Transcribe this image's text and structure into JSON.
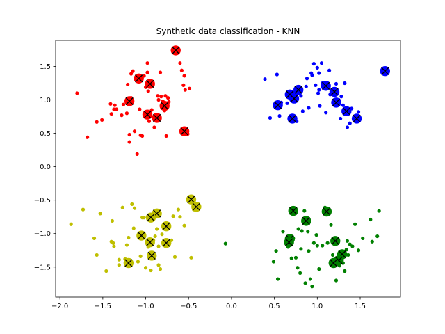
{
  "chart_data": {
    "type": "scatter",
    "title": "Synthetic data classification - KNN",
    "xlabel": "",
    "ylabel": "",
    "xlim": [
      -2.05,
      1.97
    ],
    "ylim": [
      -1.95,
      1.89
    ],
    "xticks": [
      -2.0,
      -1.5,
      -1.0,
      -0.5,
      0.0,
      0.5,
      1.0,
      1.5
    ],
    "xtick_labels": [
      "−2.0",
      "−1.5",
      "−1.0",
      "−0.5",
      "0.0",
      "0.5",
      "1.0",
      "1.5"
    ],
    "yticks": [
      -1.5,
      -1.0,
      -0.5,
      0.0,
      0.5,
      1.0,
      1.5
    ],
    "ytick_labels": [
      "−1.5",
      "−1.0",
      "−0.5",
      "0.0",
      "0.5",
      "1.0",
      "1.5"
    ],
    "grid": false,
    "series": [
      {
        "color": "#ff0000",
        "points": [
          [
            -1.8,
            1.1
          ],
          [
            -1.68,
            0.44
          ],
          [
            -1.57,
            0.67
          ],
          [
            -1.51,
            0.7
          ],
          [
            -1.41,
            0.94
          ],
          [
            -1.4,
            0.79
          ],
          [
            -1.37,
            0.86
          ],
          [
            -1.36,
            0.92
          ],
          [
            -1.34,
            0.86
          ],
          [
            -1.28,
            0.77
          ],
          [
            -1.26,
            0.93
          ],
          [
            -1.22,
            0.8
          ],
          [
            -1.17,
            1.03
          ],
          [
            -1.21,
            1.23
          ],
          [
            -1.19,
            0.48
          ],
          [
            -1.19,
            0.37
          ],
          [
            -1.17,
            1.39
          ],
          [
            -1.15,
            1.43
          ],
          [
            -1.13,
            0.53
          ],
          [
            -1.1,
            0.19
          ],
          [
            -1.07,
            0.86
          ],
          [
            -1.06,
            0.47
          ],
          [
            -1.04,
            0.46
          ],
          [
            -1.02,
            1.36
          ],
          [
            -1.0,
            1.19
          ],
          [
            -0.98,
            1.41
          ],
          [
            -0.98,
            1.55
          ],
          [
            -0.97,
            1.13
          ],
          [
            -0.96,
            0.68
          ],
          [
            -0.93,
            0.85
          ],
          [
            -0.9,
            0.59
          ],
          [
            -0.88,
            0.71
          ],
          [
            -0.86,
            1.06
          ],
          [
            -0.85,
            1.0
          ],
          [
            -0.83,
            1.41
          ],
          [
            -0.82,
            1.05
          ],
          [
            -0.8,
            0.98
          ],
          [
            -0.78,
            0.84
          ],
          [
            -0.76,
            0.46
          ],
          [
            -0.77,
            1.06
          ],
          [
            -0.74,
            1.03
          ],
          [
            -0.73,
            0.97
          ],
          [
            -0.6,
            1.55
          ],
          [
            -0.58,
            1.44
          ],
          [
            -0.56,
            1.22
          ],
          [
            -0.55,
            1.36
          ],
          [
            -0.54,
            1.15
          ],
          [
            -0.51,
            0.49
          ],
          [
            -0.49,
            1.17
          ]
        ],
        "neighbors": [
          [
            -0.65,
            1.74
          ],
          [
            -1.08,
            1.32
          ],
          [
            -0.95,
            1.24
          ],
          [
            -1.19,
            0.98
          ],
          [
            -0.78,
            0.91
          ],
          [
            -0.98,
            0.78
          ],
          [
            -0.87,
            0.73
          ],
          [
            -0.55,
            0.53
          ]
        ]
      },
      {
        "color": "#0000ff",
        "points": [
          [
            0.39,
            1.31
          ],
          [
            0.45,
            0.73
          ],
          [
            0.53,
            1.38
          ],
          [
            0.56,
            0.76
          ],
          [
            0.58,
            0.96
          ],
          [
            0.65,
            0.95
          ],
          [
            0.68,
            1.05
          ],
          [
            0.7,
            0.72
          ],
          [
            0.72,
            0.99
          ],
          [
            0.76,
            0.68
          ],
          [
            0.81,
            1.06
          ],
          [
            0.83,
            0.83
          ],
          [
            0.87,
            1.2
          ],
          [
            0.88,
            1.32
          ],
          [
            0.9,
            0.88
          ],
          [
            0.93,
            1.4
          ],
          [
            0.94,
            1.37
          ],
          [
            0.96,
            1.54
          ],
          [
            0.98,
            1.22
          ],
          [
            1.0,
            1.48
          ],
          [
            1.01,
            1.1
          ],
          [
            1.02,
            1.15
          ],
          [
            1.02,
            1.4
          ],
          [
            1.03,
            0.91
          ],
          [
            1.05,
            1.55
          ],
          [
            1.06,
            1.25
          ],
          [
            1.1,
            0.81
          ],
          [
            1.14,
            1.44
          ],
          [
            1.15,
            1.08
          ],
          [
            1.18,
            1.11
          ],
          [
            1.19,
            0.97
          ],
          [
            1.22,
            1.24
          ],
          [
            1.25,
            1.0
          ],
          [
            1.27,
            0.72
          ],
          [
            1.28,
            1.05
          ],
          [
            1.3,
            0.92
          ],
          [
            1.32,
            1.25
          ],
          [
            1.35,
            0.59
          ],
          [
            1.38,
            0.65
          ],
          [
            1.4,
            0.87
          ],
          [
            1.43,
            0.73
          ],
          [
            1.48,
            0.82
          ]
        ],
        "neighbors": [
          [
            1.79,
            1.43
          ],
          [
            1.1,
            1.21
          ],
          [
            0.78,
            1.15
          ],
          [
            0.68,
            1.08
          ],
          [
            1.2,
            1.12
          ],
          [
            1.22,
            0.96
          ],
          [
            0.54,
            0.92
          ],
          [
            0.73,
            1.02
          ],
          [
            1.34,
            0.83
          ],
          [
            0.71,
            0.72
          ],
          [
            1.46,
            0.72
          ]
        ]
      },
      {
        "color": "#bfbf00",
        "points": [
          [
            -1.87,
            -0.86
          ],
          [
            -1.73,
            -0.64
          ],
          [
            -1.6,
            -1.07
          ],
          [
            -1.57,
            -1.32
          ],
          [
            -1.53,
            -0.7
          ],
          [
            -1.46,
            -1.56
          ],
          [
            -1.4,
            -1.12
          ],
          [
            -1.39,
            -0.81
          ],
          [
            -1.38,
            -1.14
          ],
          [
            -1.37,
            -1.19
          ],
          [
            -1.31,
            -1.47
          ],
          [
            -1.31,
            -1.39
          ],
          [
            -1.27,
            -0.61
          ],
          [
            -1.24,
            -1.38
          ],
          [
            -1.22,
            -1.17
          ],
          [
            -1.2,
            -1.06
          ],
          [
            -1.16,
            -0.56
          ],
          [
            -1.14,
            -0.92
          ],
          [
            -1.13,
            -0.62
          ],
          [
            -1.09,
            -1.42
          ],
          [
            -1.06,
            -1.34
          ],
          [
            -1.04,
            -0.76
          ],
          [
            -1.02,
            -0.76
          ],
          [
            -1.0,
            -1.51
          ],
          [
            -0.97,
            -1.2
          ],
          [
            -0.94,
            -1.55
          ],
          [
            -0.92,
            -1.32
          ],
          [
            -0.91,
            -1.1
          ],
          [
            -0.89,
            -1.04
          ],
          [
            -0.87,
            -0.93
          ],
          [
            -0.85,
            -1.19
          ],
          [
            -0.85,
            -1.47
          ],
          [
            -0.83,
            -1.53
          ],
          [
            -0.81,
            -1.01
          ],
          [
            -0.79,
            -0.92
          ],
          [
            -0.76,
            -0.85
          ],
          [
            -0.7,
            -1.1
          ],
          [
            -0.68,
            -0.74
          ],
          [
            -0.66,
            -1.35
          ],
          [
            -0.62,
            -0.64
          ],
          [
            -0.6,
            -0.75
          ],
          [
            -0.55,
            -0.88
          ],
          [
            -0.47,
            -1.36
          ],
          [
            -0.44,
            -0.64
          ]
        ],
        "neighbors": [
          [
            -0.47,
            -0.49
          ],
          [
            -0.41,
            -0.6
          ],
          [
            -0.87,
            -0.7
          ],
          [
            -0.94,
            -0.76
          ],
          [
            -0.76,
            -0.89
          ],
          [
            -1.05,
            -1.03
          ],
          [
            -0.95,
            -1.13
          ],
          [
            -0.76,
            -1.14
          ],
          [
            -0.93,
            -1.33
          ],
          [
            -1.2,
            -1.44
          ]
        ]
      },
      {
        "color": "#008000",
        "points": [
          [
            -0.07,
            -1.15
          ],
          [
            0.49,
            -1.42
          ],
          [
            0.52,
            -1.26
          ],
          [
            0.54,
            -1.68
          ],
          [
            0.6,
            -0.97
          ],
          [
            0.65,
            -1.13
          ],
          [
            0.66,
            -1.2
          ],
          [
            0.7,
            -1.37
          ],
          [
            0.72,
            -1.07
          ],
          [
            0.75,
            -1.36
          ],
          [
            0.77,
            -1.51
          ],
          [
            0.78,
            -0.93
          ],
          [
            0.8,
            -1.59
          ],
          [
            0.81,
            -1.23
          ],
          [
            0.82,
            -0.96
          ],
          [
            0.85,
            -0.66
          ],
          [
            0.86,
            -1.74
          ],
          [
            0.89,
            -0.97
          ],
          [
            0.9,
            -1.26
          ],
          [
            0.92,
            -1.68
          ],
          [
            0.94,
            -1.79
          ],
          [
            0.96,
            -1.14
          ],
          [
            0.99,
            -1.02
          ],
          [
            1.0,
            -1.18
          ],
          [
            1.02,
            -1.53
          ],
          [
            1.06,
            -1.18
          ],
          [
            1.09,
            -0.61
          ],
          [
            1.12,
            -1.14
          ],
          [
            1.16,
            -0.87
          ],
          [
            1.18,
            -1.32
          ],
          [
            1.22,
            -1.7
          ],
          [
            1.24,
            -1.36
          ],
          [
            1.26,
            -1.48
          ],
          [
            1.3,
            -1.44
          ],
          [
            1.32,
            -1.56
          ],
          [
            1.34,
            -1.24
          ],
          [
            1.36,
            -1.32
          ],
          [
            1.38,
            -1.16
          ],
          [
            1.41,
            -1.19
          ],
          [
            1.44,
            -0.86
          ],
          [
            1.48,
            -1.25
          ],
          [
            1.53,
            -1.07
          ],
          [
            1.62,
            -0.79
          ],
          [
            1.64,
            -1.12
          ],
          [
            1.7,
            -1.04
          ],
          [
            1.72,
            -0.66
          ],
          [
            1.35,
            -1.11
          ]
        ],
        "neighbors": [
          [
            0.72,
            -0.66
          ],
          [
            1.11,
            -0.67
          ],
          [
            0.87,
            -0.81
          ],
          [
            1.21,
            -1.11
          ],
          [
            0.68,
            -1.08
          ],
          [
            0.67,
            -1.13
          ],
          [
            1.29,
            -1.31
          ],
          [
            1.25,
            -1.4
          ],
          [
            1.19,
            -1.44
          ]
        ]
      }
    ]
  }
}
